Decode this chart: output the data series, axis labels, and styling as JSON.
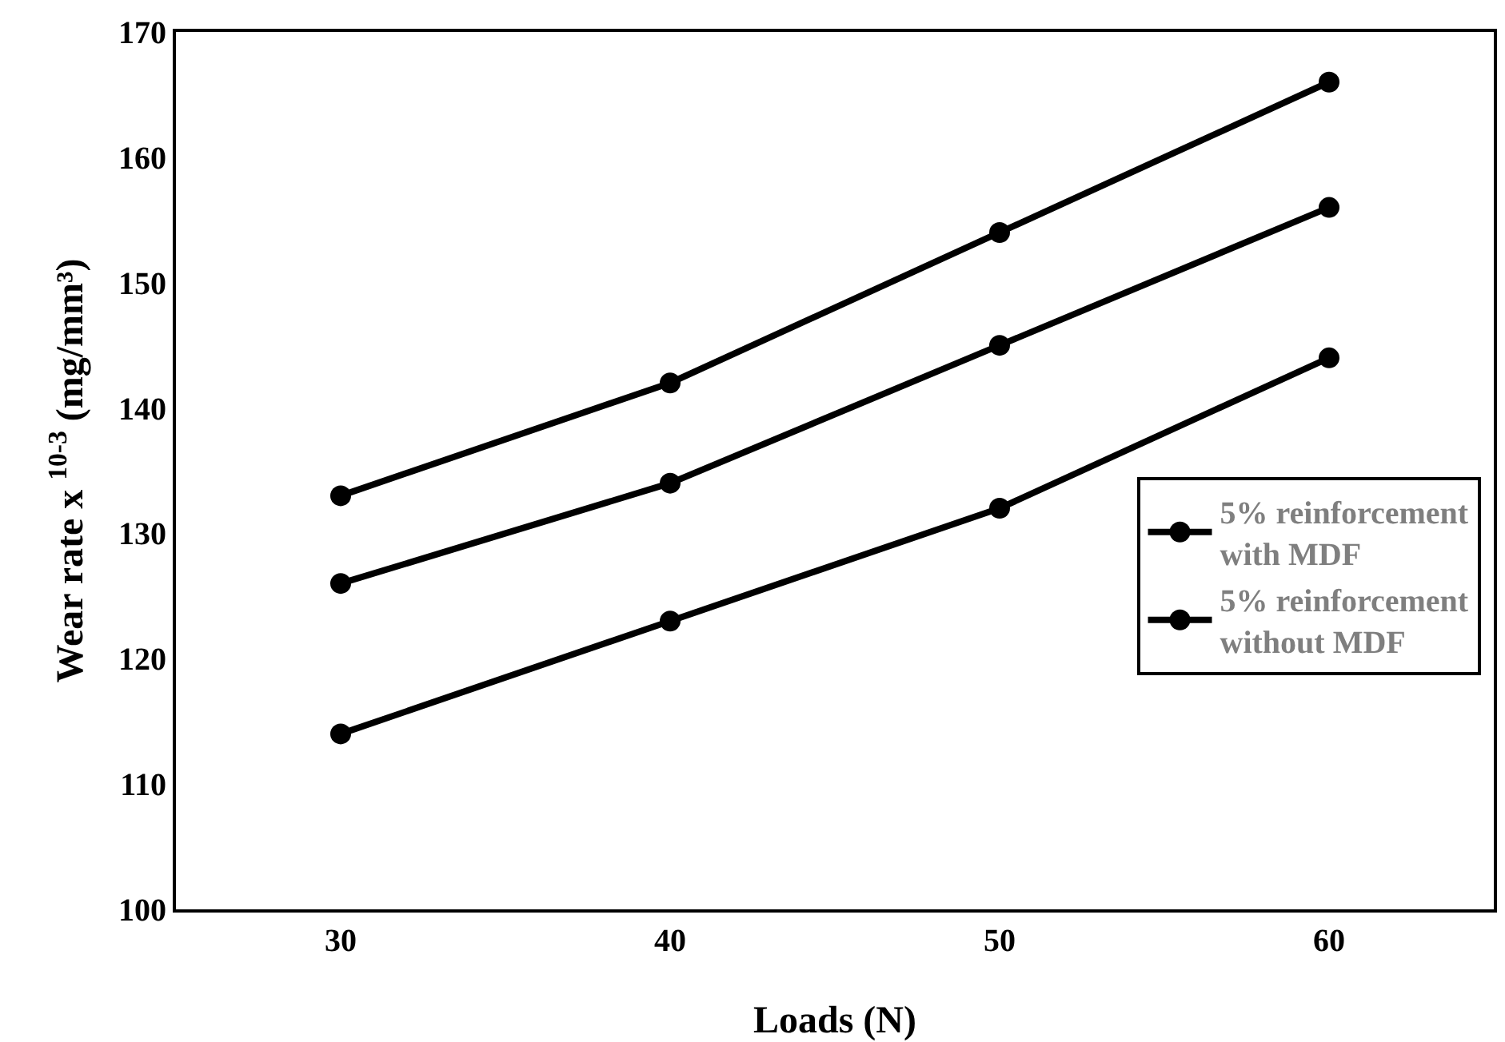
{
  "chart_data": {
    "type": "line",
    "xlabel": "Loads (N)",
    "ylabel": "Wear rate x $^{10-3}$ (mg/mm³)",
    "categories": [
      "30",
      "40",
      "50",
      "60"
    ],
    "series": [
      {
        "name": "5% reinforcement with MDF",
        "color": "#000000",
        "values": [
          133,
          142,
          154,
          166
        ]
      },
      {
        "color": "#000000",
        "values": [
          126,
          134,
          145,
          156
        ]
      },
      {
        "name": "5% reinforcement without MDF",
        "color": "#000000",
        "values": [
          114,
          123,
          132,
          144
        ]
      }
    ],
    "ylim": [
      100,
      170
    ],
    "yticks": [
      100,
      110,
      120,
      130,
      140,
      150,
      160,
      170
    ],
    "legend": "right",
    "marker": "circle",
    "line_style": "solid"
  }
}
